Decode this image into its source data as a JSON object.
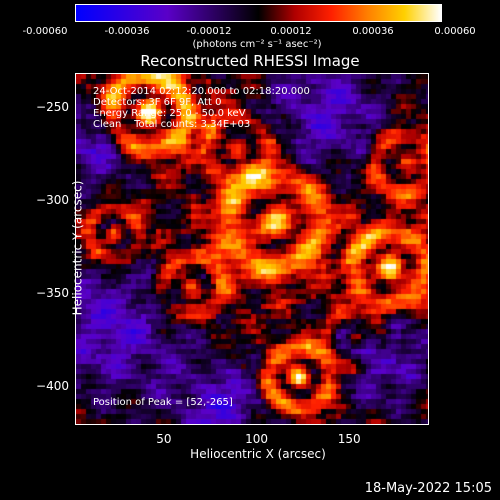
{
  "chart_data": {
    "type": "heatmap",
    "title": "Reconstructed RHESSI Image",
    "xlabel": "Heliocentric X (arcsec)",
    "ylabel": "Heliocentric Y (arcsec)",
    "xlim": [
      2,
      192
    ],
    "ylim": [
      -420,
      -232
    ],
    "x_ticks": [
      50,
      100,
      150
    ],
    "y_ticks": [
      -250,
      -300,
      -350,
      -400
    ],
    "colorbar": {
      "tick_labels": [
        "-0.00060",
        "-0.00036",
        "-0.00012",
        "0.00012",
        "0.00036",
        "0.00060"
      ],
      "unit_label": "(photons cm⁻² s⁻¹ asec⁻²)",
      "range": [
        -0.0006,
        0.0006
      ]
    },
    "annotations": {
      "time": "24-Oct-2014 02:12:20.000 to 02:18:20.000",
      "detectors": "Detectors: 3F 6F 9F, Att 0",
      "energy": "Energy Range: 25.0 - 50.0 keV",
      "clean": "Clean    Total counts: 3.34E+03",
      "peak": "Position of Peak = [52,-265]"
    },
    "peak": [
      52,
      -265
    ]
  },
  "footer": {
    "timestamp": "18-May-2022 15:05"
  },
  "colors": {
    "background": "#000000",
    "foreground": "#ffffff"
  }
}
